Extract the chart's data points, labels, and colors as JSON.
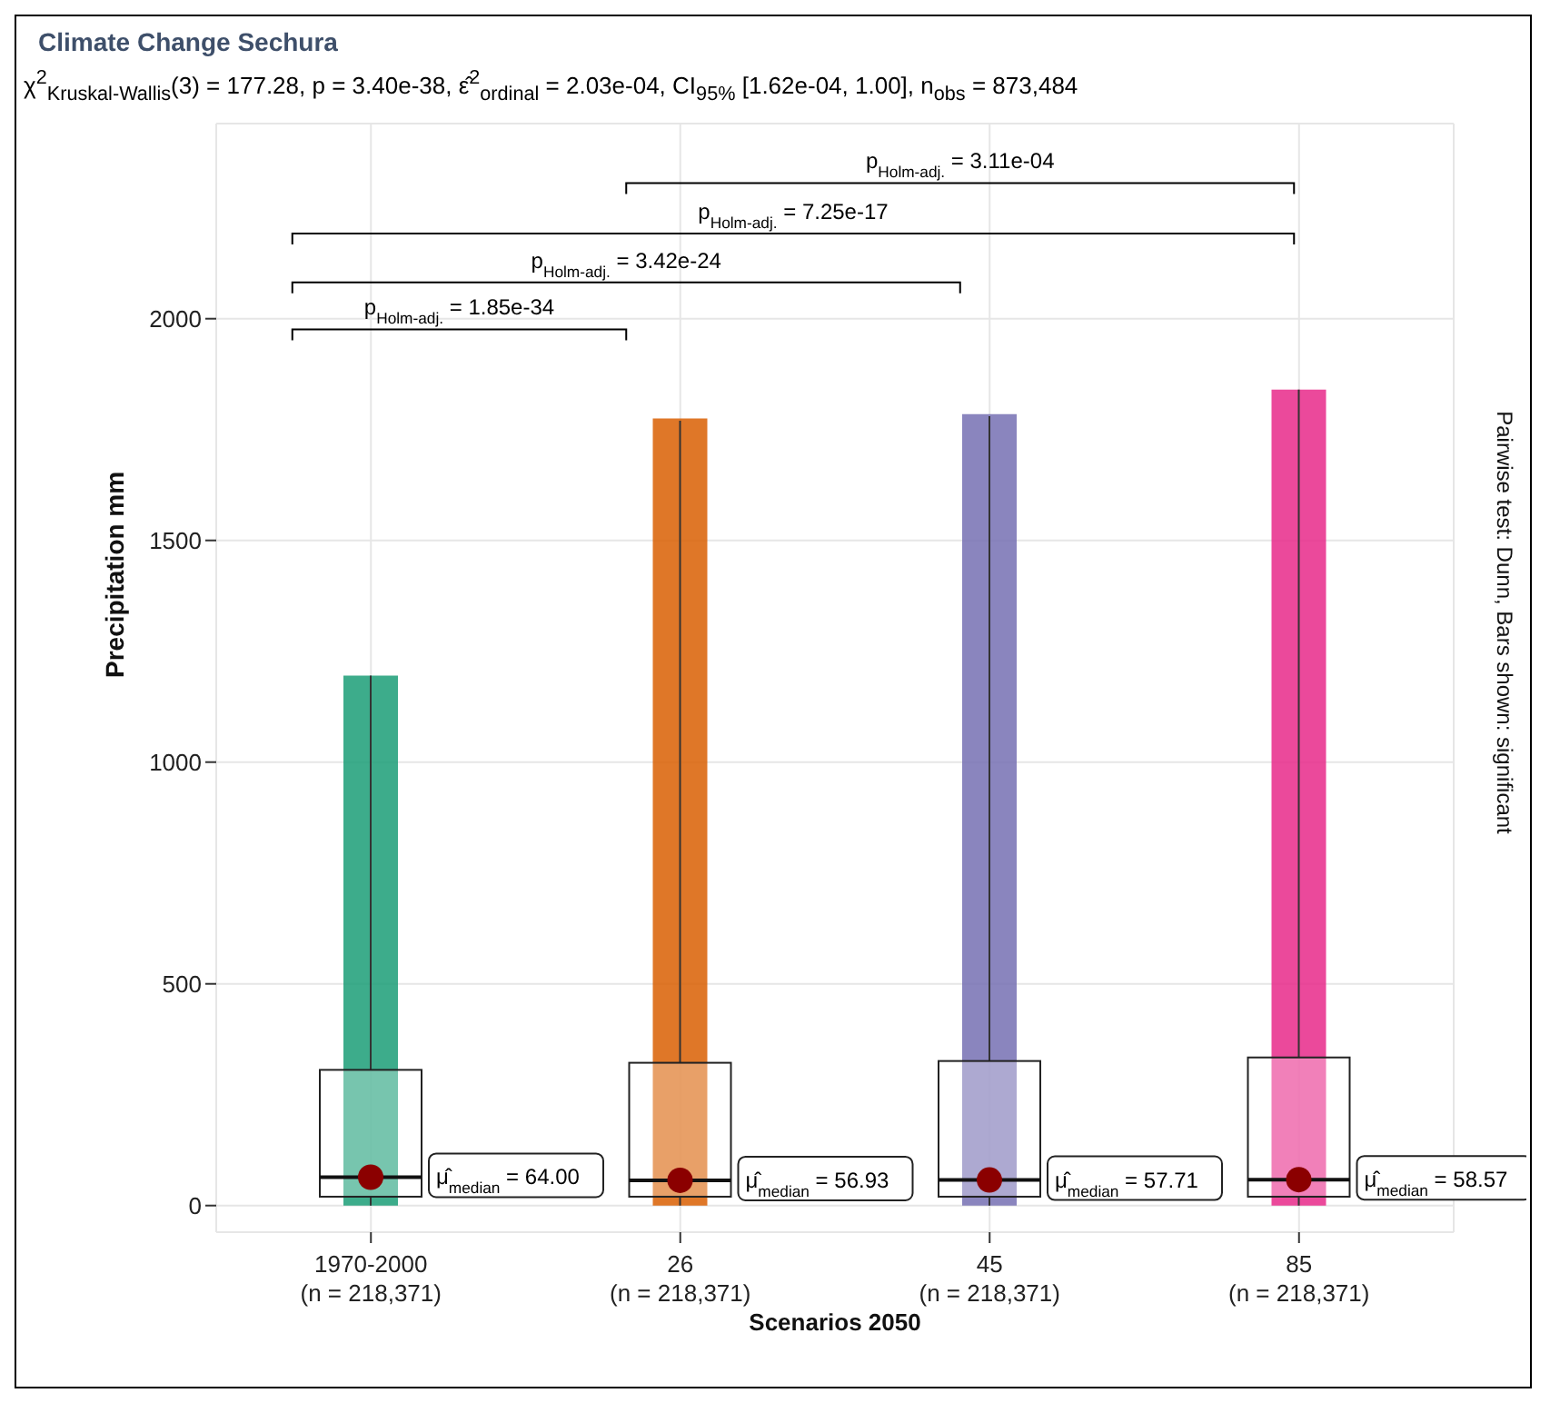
{
  "chart_data": {
    "type": "box",
    "title": "Climate Change Sechura",
    "subtitle": "χ$^{2}$$_{Kruskal-Wallis}$(3) = 177.28, p = 3.40e-38, ε̂$^{2}$$_{ordinal}$ = 2.03e-04, CI$_{95%}$ [1.62e-04, 1.00], n$_{obs}$ = 873,484",
    "xlabel": "Scenarios 2050",
    "ylabel": "Precipitation mm",
    "categories": [
      "1970-2000\n(n = 218,371)",
      "26\n(n = 218,371)",
      "45\n(n = 218,371)",
      "85\n(n = 218,371)"
    ],
    "boxes": [
      {
        "low": 0,
        "q1": 20,
        "median": 64,
        "q3": 306,
        "high": 1195
      },
      {
        "low": 0,
        "q1": 20,
        "median": 56.93,
        "q3": 322,
        "high": 1770
      },
      {
        "low": 0,
        "q1": 20,
        "median": 57.71,
        "q3": 326,
        "high": 1780
      },
      {
        "low": 0,
        "q1": 20,
        "median": 58.57,
        "q3": 334,
        "high": 1840
      }
    ],
    "series": [
      {
        "type": "bar",
        "base": [
          0,
          0,
          0,
          0
        ],
        "values": [
          1195,
          1775,
          1785,
          1840
        ],
        "colors": [
          "#1b9e77",
          "#d95f02",
          "#7570b3",
          "#e7298a"
        ]
      }
    ],
    "ylim": [
      -60,
      2440
    ],
    "yticks": [
      0,
      500,
      1000,
      1500,
      2000
    ],
    "grid": true,
    "annotations": [
      "μ̂$_{median}$ = 64.00",
      "μ̂$_{median}$ = 56.93",
      "μ̂$_{median}$ = 57.71",
      "μ̂$_{median}$ = 58.57",
      "p$_{Holm-adj.}$ = 1.85e-34",
      "p$_{Holm-adj.}$ = 3.42e-24",
      "p$_{Holm-adj.}$ = 7.25e-17",
      "p$_{Holm-adj.}$ = 3.11e-04",
      "Pairwise test: Dunn, Bars shown: significant"
    ]
  }
}
